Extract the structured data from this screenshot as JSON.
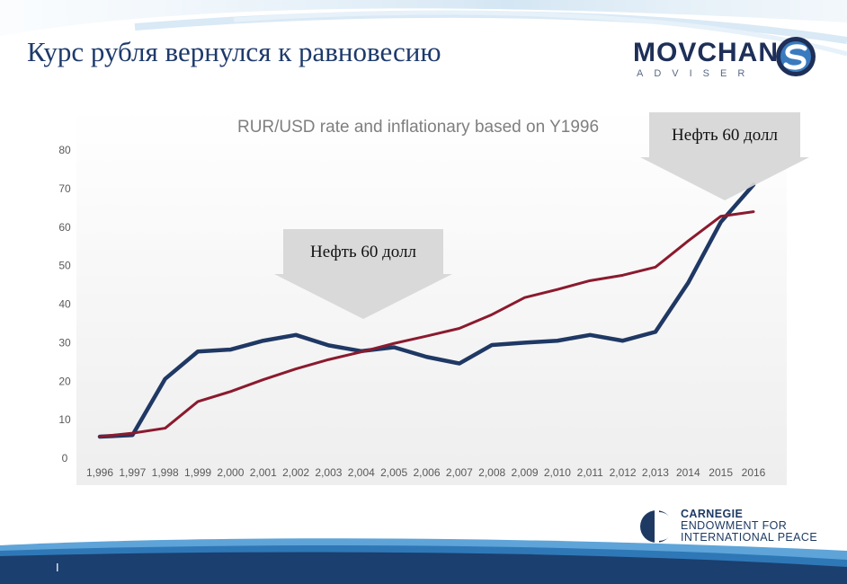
{
  "slide": {
    "title": "Курс рубля вернулся к равновесию",
    "page_number": "I"
  },
  "logo": {
    "word": "MOVCHAN",
    "sub": "ADVISER"
  },
  "carnegie": {
    "line1": "CARNEGIE",
    "line2": "ENDOWMENT FOR",
    "line3": "INTERNATIONAL PEACE"
  },
  "colors": {
    "rate_series": "#1f3864",
    "inflation_series": "#8b1a2e",
    "title_color": "#1d3a6b",
    "callout_fill": "#d6d6d6"
  },
  "callouts": [
    {
      "label": "Нефть 60 долл",
      "category": "2,004"
    },
    {
      "label": "Нефть 60 долл",
      "category": "2015"
    }
  ],
  "chart_data": {
    "type": "line",
    "title": "RUR/USD rate and inflationary based on Y1996",
    "xlabel": "",
    "ylabel": "",
    "ylim": [
      0,
      80
    ],
    "yticks": [
      0,
      10,
      20,
      30,
      40,
      50,
      60,
      70,
      80
    ],
    "grid": false,
    "legend": "none",
    "categories": [
      "1,996",
      "1,997",
      "1,998",
      "1,999",
      "2,000",
      "2,001",
      "2,002",
      "2,003",
      "2,004",
      "2,005",
      "2,006",
      "2,007",
      "2,008",
      "2,009",
      "2,010",
      "2,011",
      "2,012",
      "2,013",
      "2014",
      "2015",
      "2016"
    ],
    "series": [
      {
        "values": [
          5.6,
          6.0,
          20.6,
          27.7,
          28.2,
          30.5,
          32.0,
          29.3,
          27.8,
          28.8,
          26.3,
          24.6,
          29.4,
          30.0,
          30.5,
          32.0,
          30.5,
          32.8,
          45.5,
          61.3,
          71.0
        ]
      },
      {
        "values": [
          5.6,
          6.5,
          7.8,
          14.7,
          17.3,
          20.4,
          23.2,
          25.6,
          27.6,
          29.8,
          31.7,
          33.7,
          37.3,
          41.7,
          43.8,
          46.1,
          47.5,
          49.6,
          56.4,
          62.8,
          64.0
        ]
      }
    ]
  }
}
